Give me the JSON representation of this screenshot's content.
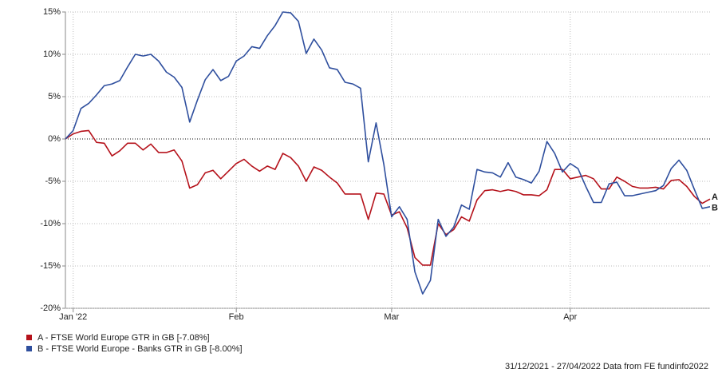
{
  "chart_data": {
    "type": "line",
    "footer": "31/12/2021 - 27/04/2022 Data from FE fundinfo2022",
    "categories": [
      null,
      "Jan '22",
      null,
      null,
      null,
      null,
      null,
      null,
      null,
      null,
      null,
      null,
      null,
      null,
      null,
      null,
      null,
      null,
      null,
      null,
      null,
      null,
      "Feb",
      null,
      null,
      null,
      null,
      null,
      null,
      null,
      null,
      null,
      null,
      null,
      null,
      null,
      null,
      null,
      null,
      null,
      null,
      null,
      "Mar",
      null,
      null,
      null,
      null,
      null,
      null,
      null,
      null,
      null,
      null,
      null,
      null,
      null,
      null,
      null,
      null,
      null,
      null,
      null,
      null,
      null,
      null,
      "Apr",
      null,
      null,
      null,
      null,
      null,
      null,
      null,
      null,
      null,
      null,
      null,
      null,
      null,
      null,
      null,
      null,
      null,
      null
    ],
    "ylim": [
      -20,
      15
    ],
    "yticks": [
      {
        "value": -20,
        "label": "-20%"
      },
      {
        "value": -15,
        "label": "-15%"
      },
      {
        "value": -10,
        "label": "-10%"
      },
      {
        "value": -5,
        "label": "-5%"
      },
      {
        "value": 0,
        "label": "0%"
      },
      {
        "value": 5,
        "label": "5%"
      },
      {
        "value": 10,
        "label": "10%"
      },
      {
        "value": 15,
        "label": "15%"
      }
    ],
    "grid": true,
    "series": [
      {
        "name": "A - FTSE World Europe GTR in GB [-7.08%]",
        "label": "A",
        "color": "#b5121b",
        "values": [
          0,
          0.6,
          0.9,
          1.0,
          -0.4,
          -0.5,
          -2.0,
          -1.4,
          -0.5,
          -0.5,
          -1.3,
          -0.6,
          -1.6,
          -1.6,
          -1.3,
          -2.6,
          -5.8,
          -5.4,
          -4.0,
          -3.7,
          -4.7,
          -3.8,
          -2.9,
          -2.4,
          -3.2,
          -3.8,
          -3.2,
          -3.6,
          -1.7,
          -2.2,
          -3.2,
          -5.0,
          -3.3,
          -3.7,
          -4.5,
          -5.2,
          -6.5,
          -6.5,
          -6.5,
          -9.5,
          -6.4,
          -6.5,
          -9.0,
          -8.6,
          -10.5,
          -14.0,
          -14.9,
          -14.9,
          -10.0,
          -11.3,
          -10.7,
          -9.2,
          -9.7,
          -7.2,
          -6.1,
          -6.0,
          -6.2,
          -6.0,
          -6.2,
          -6.6,
          -6.6,
          -6.7,
          -6.0,
          -3.6,
          -3.6,
          -4.7,
          -4.5,
          -4.3,
          -4.7,
          -5.9,
          -5.9,
          -4.5,
          -5.0,
          -5.6,
          -5.8,
          -5.8,
          -5.7,
          -5.9,
          -4.9,
          -4.8,
          -5.6,
          -6.8,
          -7.6,
          -7.1
        ]
      },
      {
        "name": "B - FTSE World Europe - Banks GTR in GB [-8.00%]",
        "label": "B",
        "color": "#2f4f9e",
        "values": [
          0,
          1.0,
          3.6,
          4.2,
          5.2,
          6.3,
          6.5,
          6.9,
          8.5,
          10.0,
          9.8,
          10.0,
          9.2,
          7.9,
          7.3,
          6.1,
          2.0,
          4.6,
          7.0,
          8.2,
          6.9,
          7.4,
          9.2,
          9.8,
          10.9,
          10.7,
          12.2,
          13.4,
          15.0,
          14.9,
          13.9,
          10.1,
          11.8,
          10.5,
          8.4,
          8.2,
          6.7,
          6.5,
          6.0,
          -2.7,
          1.9,
          -3.0,
          -9.2,
          -8.0,
          -9.5,
          -15.7,
          -18.3,
          -16.7,
          -9.5,
          -11.5,
          -10.4,
          -7.8,
          -8.3,
          -3.6,
          -3.9,
          -4.0,
          -4.5,
          -2.8,
          -4.5,
          -4.8,
          -5.2,
          -3.8,
          -0.3,
          -1.7,
          -3.9,
          -2.9,
          -3.5,
          -5.6,
          -7.5,
          -7.5,
          -5.3,
          -5.1,
          -6.7,
          -6.7,
          -6.5,
          -6.3,
          -6.1,
          -5.5,
          -3.5,
          -2.5,
          -3.7,
          -6.0,
          -8.2,
          -8.0
        ]
      }
    ]
  }
}
